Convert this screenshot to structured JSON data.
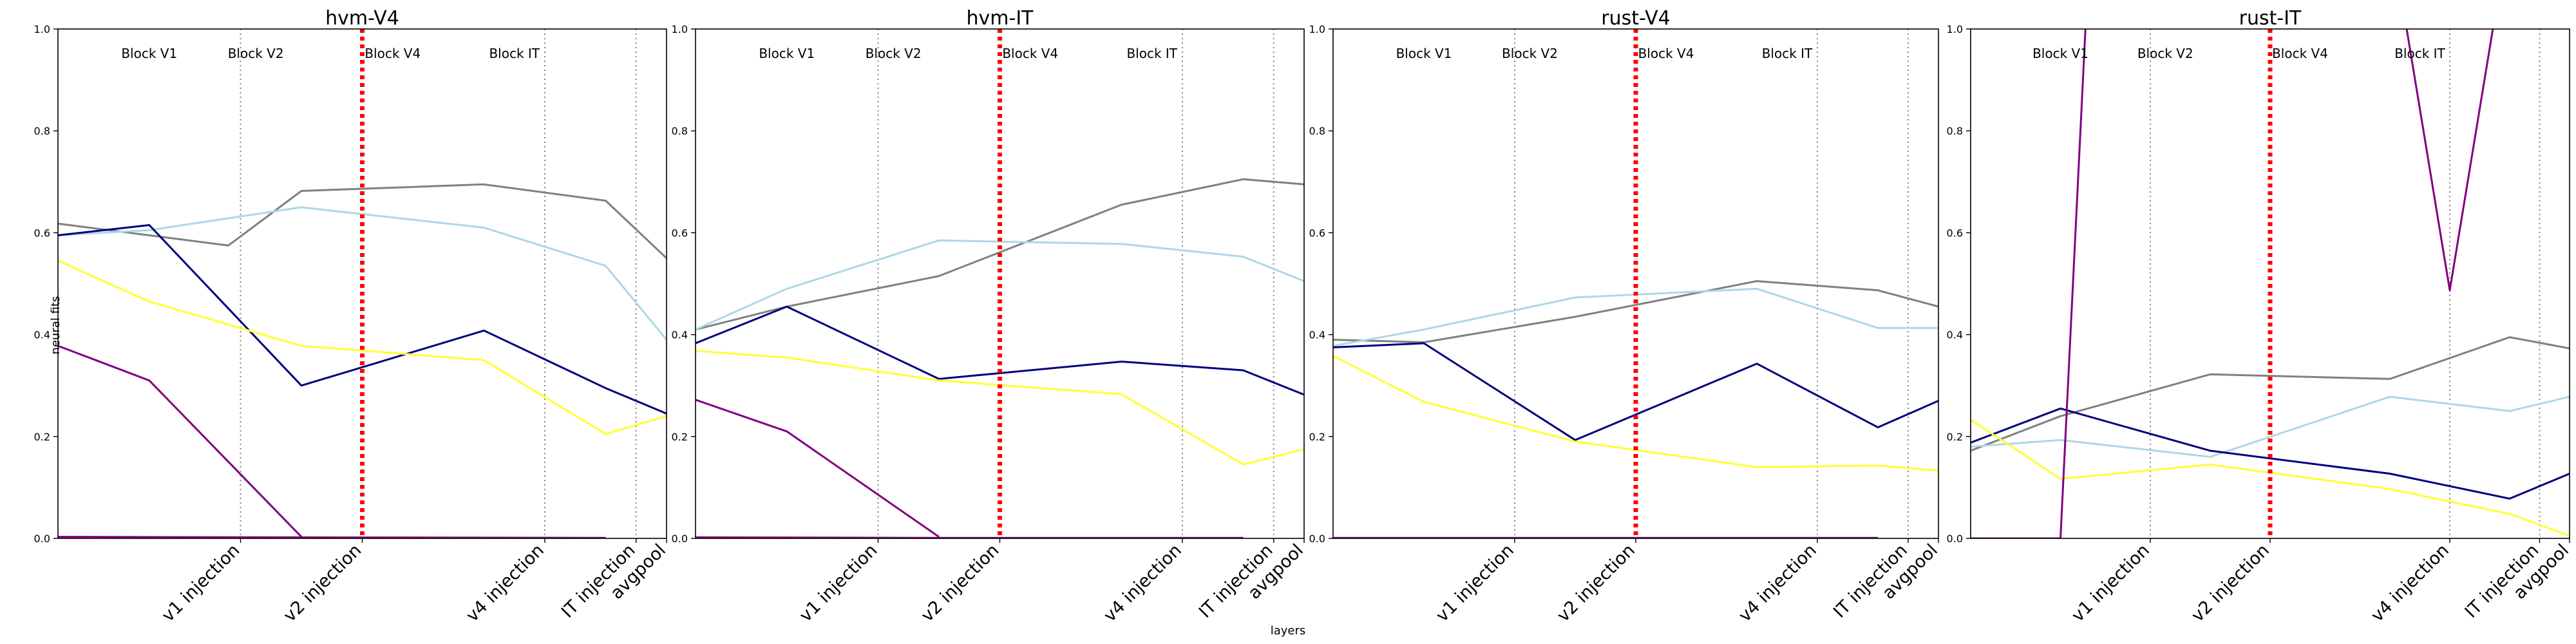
{
  "figure": {
    "xlabel": "layers",
    "ylabel": "neural fits"
  },
  "chart_data": [
    {
      "type": "line",
      "title": "hvm-V4",
      "ylim": [
        0,
        1
      ],
      "yticks": [
        "0.0",
        "0.2",
        "0.4",
        "0.6",
        "0.8",
        "1.0"
      ],
      "x_ticks": [
        {
          "label": "v1 injection",
          "x": 3
        },
        {
          "label": "v2 injection",
          "x": 5
        },
        {
          "label": "v4 injection",
          "x": 8
        },
        {
          "label": "IT injection",
          "x": 9.5
        },
        {
          "label": "avgpool",
          "x": 10
        }
      ],
      "xlim": [
        0,
        10
      ],
      "block_labels": [
        {
          "label": "Block V1",
          "x": 1.5
        },
        {
          "label": "Block V2",
          "x": 3.25
        },
        {
          "label": "Block V4",
          "x": 5.5
        },
        {
          "label": "Block IT",
          "x": 7.5
        }
      ],
      "dotted_lines": [
        3,
        8,
        9.5
      ],
      "red_line": 5,
      "series": [
        {
          "color": "#808080",
          "x": [
            0,
            2.8,
            4,
            7,
            9,
            10
          ],
          "y": [
            0.618,
            0.575,
            0.682,
            0.695,
            0.663,
            0.55
          ]
        },
        {
          "color": "#add8e6",
          "x": [
            0,
            1.5,
            4,
            7,
            9,
            10
          ],
          "y": [
            0.595,
            0.605,
            0.65,
            0.61,
            0.535,
            0.39
          ]
        },
        {
          "color": "#000080",
          "x": [
            0,
            1.5,
            4,
            7,
            9,
            10
          ],
          "y": [
            0.595,
            0.615,
            0.3,
            0.408,
            0.295,
            0.245
          ]
        },
        {
          "color": "#ffff33",
          "x": [
            0,
            1.5,
            4,
            7,
            9,
            10
          ],
          "y": [
            0.545,
            0.465,
            0.378,
            0.35,
            0.205,
            0.24
          ]
        },
        {
          "color": "#800080",
          "x": [
            0,
            1.5,
            4
          ],
          "y": [
            0.378,
            0.31,
            0.003
          ]
        },
        {
          "color": "#800080",
          "x": [
            0,
            4,
            9
          ],
          "y": [
            0.003,
            0.002,
            0.001
          ]
        }
      ]
    },
    {
      "type": "line",
      "title": "hvm-IT",
      "ylim": [
        0,
        1
      ],
      "yticks": [
        "0.0",
        "0.2",
        "0.4",
        "0.6",
        "0.8",
        "1.0"
      ],
      "x_ticks": [
        {
          "label": "v1 injection",
          "x": 3
        },
        {
          "label": "v2 injection",
          "x": 5
        },
        {
          "label": "v4 injection",
          "x": 8
        },
        {
          "label": "IT injection",
          "x": 9.5
        },
        {
          "label": "avgpool",
          "x": 10
        }
      ],
      "xlim": [
        0,
        10
      ],
      "block_labels": [
        {
          "label": "Block V1",
          "x": 1.5
        },
        {
          "label": "Block V2",
          "x": 3.25
        },
        {
          "label": "Block V4",
          "x": 5.5
        },
        {
          "label": "Block IT",
          "x": 7.5
        }
      ],
      "dotted_lines": [
        3,
        8,
        9.5
      ],
      "red_line": 5,
      "series": [
        {
          "color": "#808080",
          "x": [
            0,
            1.5,
            4,
            7,
            9,
            10
          ],
          "y": [
            0.41,
            0.455,
            0.515,
            0.655,
            0.705,
            0.695
          ]
        },
        {
          "color": "#add8e6",
          "x": [
            0,
            1.5,
            4,
            7,
            9,
            10
          ],
          "y": [
            0.41,
            0.49,
            0.585,
            0.578,
            0.553,
            0.505
          ]
        },
        {
          "color": "#000080",
          "x": [
            0,
            1.5,
            4,
            7,
            9,
            10
          ],
          "y": [
            0.383,
            0.455,
            0.313,
            0.347,
            0.33,
            0.282
          ]
        },
        {
          "color": "#ffff33",
          "x": [
            0,
            1.5,
            4,
            7,
            9,
            10
          ],
          "y": [
            0.368,
            0.355,
            0.31,
            0.283,
            0.145,
            0.175
          ]
        },
        {
          "color": "#800080",
          "x": [
            0,
            1.5,
            4
          ],
          "y": [
            0.272,
            0.21,
            0.003
          ]
        },
        {
          "color": "#800080",
          "x": [
            0,
            4,
            9
          ],
          "y": [
            0.002,
            0.001,
            0.001
          ]
        }
      ]
    },
    {
      "type": "line",
      "title": "rust-V4",
      "ylim": [
        0,
        1
      ],
      "yticks": [
        "0.0",
        "0.2",
        "0.4",
        "0.6",
        "0.8",
        "1.0"
      ],
      "x_ticks": [
        {
          "label": "v1 injection",
          "x": 3
        },
        {
          "label": "v2 injection",
          "x": 5
        },
        {
          "label": "v4 injection",
          "x": 8
        },
        {
          "label": "IT injection",
          "x": 9.5
        },
        {
          "label": "avgpool",
          "x": 10
        }
      ],
      "xlim": [
        0,
        10
      ],
      "block_labels": [
        {
          "label": "Block V1",
          "x": 1.5
        },
        {
          "label": "Block V2",
          "x": 3.25
        },
        {
          "label": "Block V4",
          "x": 5.5
        },
        {
          "label": "Block IT",
          "x": 7.5
        }
      ],
      "dotted_lines": [
        3,
        8,
        9.5
      ],
      "red_line": 5,
      "series": [
        {
          "color": "#808080",
          "x": [
            0,
            1.5,
            4,
            7,
            9,
            10
          ],
          "y": [
            0.39,
            0.385,
            0.435,
            0.505,
            0.487,
            0.455
          ]
        },
        {
          "color": "#add8e6",
          "x": [
            0,
            1.5,
            4,
            7,
            9,
            10
          ],
          "y": [
            0.378,
            0.41,
            0.473,
            0.49,
            0.413,
            0.413
          ]
        },
        {
          "color": "#000080",
          "x": [
            0,
            1.5,
            4,
            7,
            9,
            10
          ],
          "y": [
            0.375,
            0.383,
            0.193,
            0.343,
            0.218,
            0.27
          ]
        },
        {
          "color": "#ffff33",
          "x": [
            0,
            1.5,
            4,
            7,
            9,
            10
          ],
          "y": [
            0.358,
            0.268,
            0.19,
            0.14,
            0.143,
            0.133
          ]
        },
        {
          "color": "#800080",
          "x": [
            0,
            1.5,
            4,
            9
          ],
          "y": [
            0.001,
            0.001,
            0.001,
            0.001
          ]
        }
      ]
    },
    {
      "type": "line",
      "title": "rust-IT",
      "ylim": [
        0,
        1
      ],
      "yticks": [
        "0.0",
        "0.2",
        "0.4",
        "0.6",
        "0.8",
        "1.0"
      ],
      "x_ticks": [
        {
          "label": "v1 injection",
          "x": 3
        },
        {
          "label": "v2 injection",
          "x": 5
        },
        {
          "label": "v4 injection",
          "x": 8
        },
        {
          "label": "IT injection",
          "x": 9.5
        },
        {
          "label": "avgpool",
          "x": 10
        }
      ],
      "xlim": [
        0,
        10
      ],
      "block_labels": [
        {
          "label": "Block V1",
          "x": 1.5
        },
        {
          "label": "Block V2",
          "x": 3.25
        },
        {
          "label": "Block V4",
          "x": 5.5
        },
        {
          "label": "Block IT",
          "x": 7.5
        }
      ],
      "dotted_lines": [
        3,
        8,
        9.5
      ],
      "red_line": 5,
      "series": [
        {
          "color": "#808080",
          "x": [
            0,
            1.5,
            4,
            7,
            9,
            10
          ],
          "y": [
            0.172,
            0.24,
            0.322,
            0.313,
            0.395,
            0.373
          ]
        },
        {
          "color": "#add8e6",
          "x": [
            0,
            1.5,
            4,
            7,
            9,
            10
          ],
          "y": [
            0.18,
            0.193,
            0.16,
            0.278,
            0.25,
            0.278
          ]
        },
        {
          "color": "#000080",
          "x": [
            0,
            1.5,
            4,
            7,
            9,
            10
          ],
          "y": [
            0.188,
            0.255,
            0.172,
            0.127,
            0.078,
            0.127
          ]
        },
        {
          "color": "#ffff33",
          "x": [
            0,
            1.5,
            4,
            7,
            9,
            10
          ],
          "y": [
            0.233,
            0.117,
            0.145,
            0.097,
            0.048,
            0.005
          ]
        },
        {
          "color": "#800080",
          "x": [
            0,
            1.5,
            2.0,
            7,
            8,
            9
          ],
          "y": [
            0.0,
            0.0,
            1.2,
            1.2,
            0.487,
            1.2
          ]
        }
      ]
    }
  ]
}
